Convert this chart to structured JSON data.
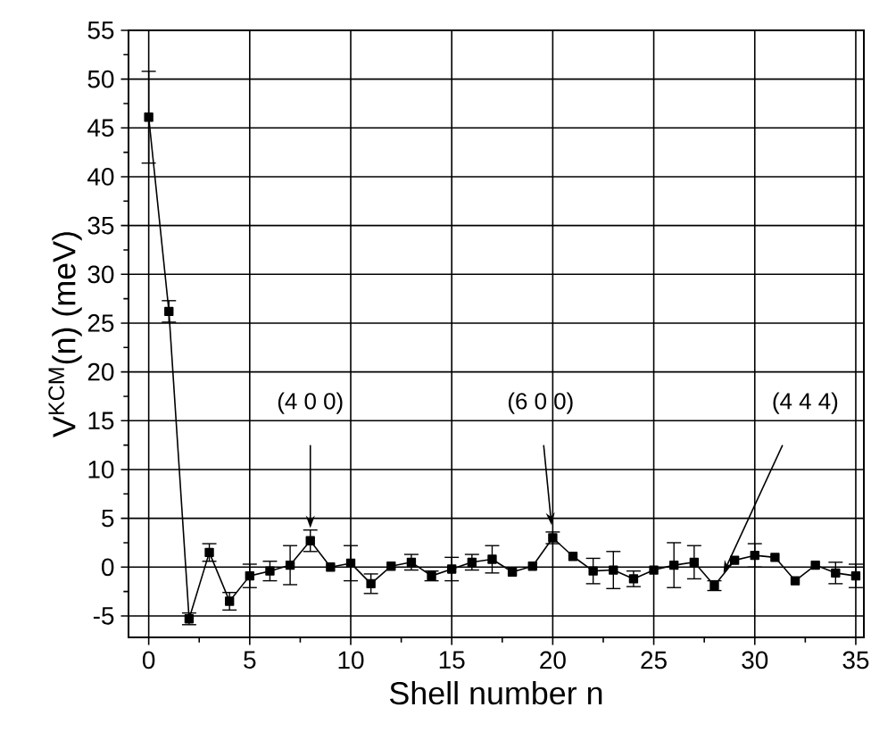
{
  "chart_data": {
    "type": "line",
    "xlabel": "Shell number n",
    "ylabel": "V$^{KCM}$(n)  (meV)",
    "x": [
      0,
      1,
      2,
      3,
      4,
      5,
      6,
      7,
      8,
      9,
      10,
      11,
      12,
      13,
      14,
      15,
      16,
      17,
      18,
      19,
      20,
      21,
      22,
      23,
      24,
      25,
      26,
      27,
      28,
      29,
      30,
      31,
      32,
      33,
      34,
      35
    ],
    "series": [
      {
        "color": "#000000",
        "values": [
          46.1,
          26.2,
          -5.3,
          1.5,
          -3.5,
          -0.9,
          -0.4,
          0.2,
          2.7,
          0.0,
          0.4,
          -1.7,
          0.1,
          0.5,
          -0.9,
          -0.2,
          0.5,
          0.8,
          -0.5,
          0.1,
          3.0,
          1.1,
          -0.4,
          -0.3,
          -1.2,
          -0.3,
          0.2,
          0.5,
          -1.9,
          0.7,
          1.2,
          1.0,
          -1.4,
          0.2,
          -0.6,
          -0.9
        ],
        "errors": [
          4.7,
          1.1,
          0.6,
          0.9,
          0.9,
          1.2,
          1.0,
          2.0,
          1.1,
          null,
          1.8,
          1.0,
          null,
          0.8,
          0.5,
          1.2,
          0.8,
          1.4,
          null,
          null,
          0.6,
          null,
          1.3,
          1.9,
          0.8,
          null,
          2.3,
          1.7,
          0.5,
          null,
          1.2,
          null,
          null,
          null,
          1.1,
          1.2
        ]
      }
    ],
    "xlim": [
      -1,
      35.4
    ],
    "ylim": [
      -7.2,
      55
    ],
    "xticks": [
      0,
      5,
      10,
      15,
      20,
      25,
      30,
      35
    ],
    "yticks": [
      -5,
      0,
      5,
      10,
      15,
      20,
      25,
      30,
      35,
      40,
      45,
      50,
      55
    ],
    "grid": true,
    "marker": "square",
    "line_style": "solid",
    "annotations": [
      "(4 0 0)",
      "(6 0 0)",
      "(4 4 4)"
    ]
  }
}
